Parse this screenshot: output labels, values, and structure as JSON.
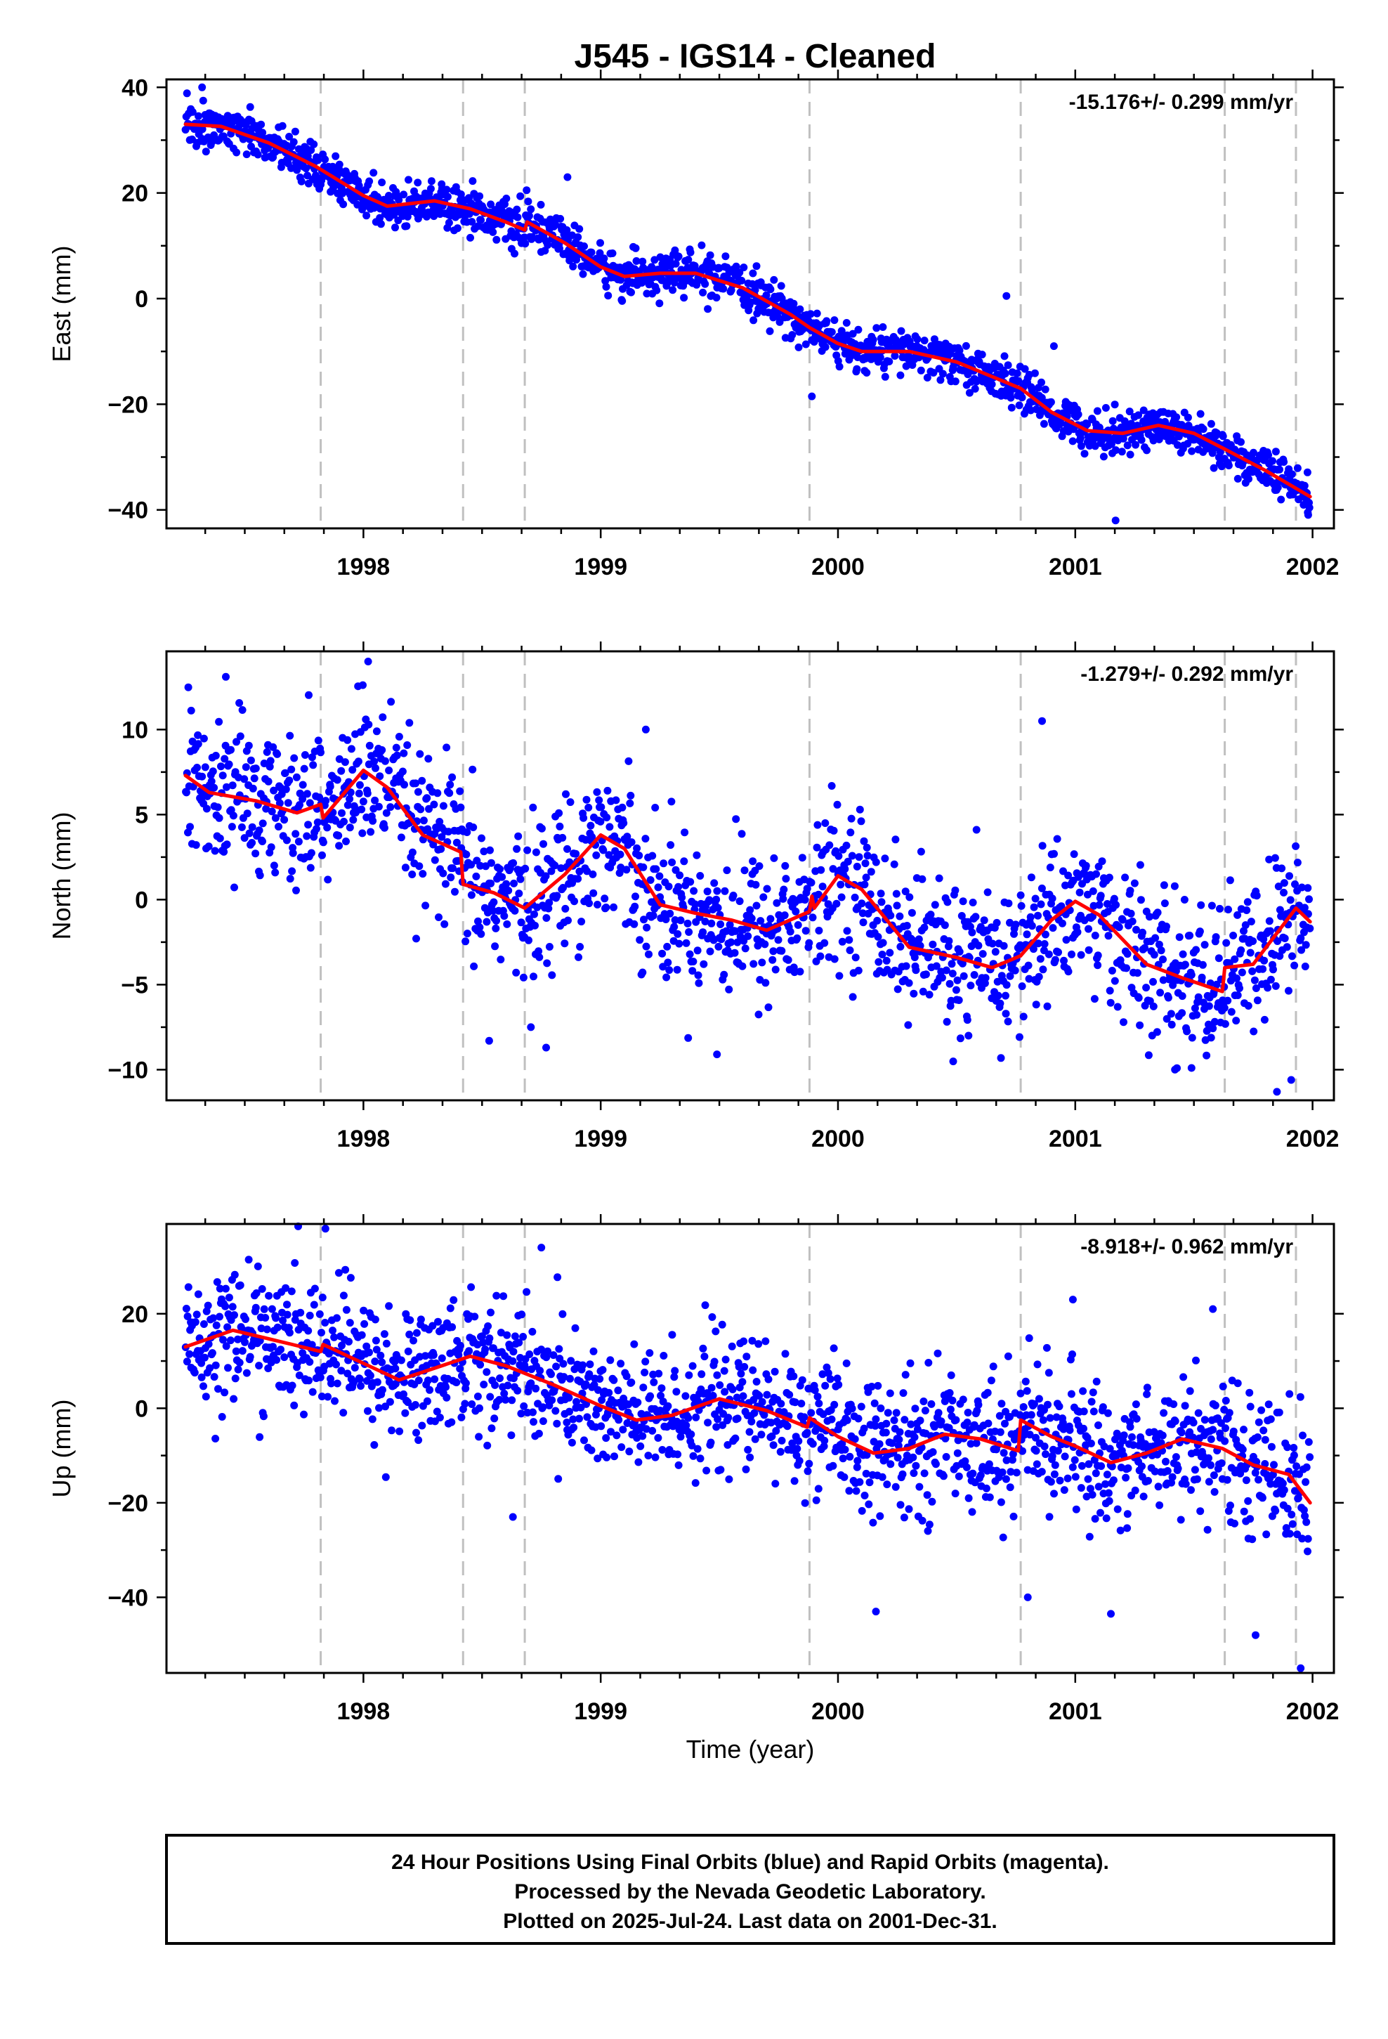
{
  "figure": {
    "title": "J545  - IGS14 - Cleaned",
    "xlabel": "Time (year)"
  },
  "footer": {
    "lines": [
      "24 Hour Positions Using Final Orbits (blue) and Rapid Orbits (magenta).",
      "Processed by the Nevada Geodetic Laboratory.",
      "Plotted on 2025-Jul-24. Last data on 2001-Dec-31."
    ]
  },
  "colors": {
    "points": "#0000ff",
    "model": "#ff0000",
    "event_lines": "#c0c0c0",
    "frame": "#000000",
    "background": "#ffffff"
  },
  "chart_data": [
    {
      "type": "scatter",
      "component": "east",
      "ylabel": "East (mm)",
      "rate_label": "-15.176+/- 0.299 mm/yr",
      "xlim": [
        1997.17,
        2002.09
      ],
      "ylim": [
        -43.5,
        41.5
      ],
      "x_ticks": [
        1998,
        1999,
        2000,
        2001,
        2002
      ],
      "x_tick_labels": [
        "1998",
        "1999",
        "2000",
        "2001",
        "2002"
      ],
      "y_ticks": [
        -40,
        -20,
        0,
        20,
        40
      ],
      "y_tick_labels": [
        "−40",
        "−20",
        "0",
        "20",
        "40"
      ],
      "event_lines": [
        1997.82,
        1998.42,
        1998.68,
        1999.88,
        2000.77,
        2001.63,
        2001.93
      ],
      "data_range": [
        1997.25,
        2001.99
      ],
      "model": [
        [
          1997.25,
          33.0
        ],
        [
          1997.4,
          32.6
        ],
        [
          1997.6,
          29.5
        ],
        [
          1997.8,
          25.0
        ],
        [
          1998.0,
          19.5
        ],
        [
          1998.1,
          17.5
        ],
        [
          1998.3,
          18.5
        ],
        [
          1998.45,
          17.0
        ],
        [
          1998.6,
          14.5
        ],
        [
          1998.68,
          13.0
        ],
        [
          1998.69,
          14.5
        ],
        [
          1998.85,
          10.5
        ],
        [
          1999.0,
          6.0
        ],
        [
          1999.1,
          4.2
        ],
        [
          1999.25,
          4.8
        ],
        [
          1999.4,
          4.8
        ],
        [
          1999.6,
          2.0
        ],
        [
          1999.8,
          -3.0
        ],
        [
          1999.88,
          -5.5
        ],
        [
          2000.0,
          -8.5
        ],
        [
          2000.1,
          -10.0
        ],
        [
          2000.3,
          -10.0
        ],
        [
          2000.5,
          -12.0
        ],
        [
          2000.77,
          -17.0
        ],
        [
          2000.9,
          -21.5
        ],
        [
          2001.05,
          -25.0
        ],
        [
          2001.2,
          -25.5
        ],
        [
          2001.35,
          -24.0
        ],
        [
          2001.5,
          -25.5
        ],
        [
          2001.63,
          -28.5
        ],
        [
          2001.8,
          -32.5
        ],
        [
          2001.99,
          -37.5
        ]
      ],
      "noise": 2.0,
      "outliers": [
        [
          1997.32,
          40.0
        ],
        [
          1998.86,
          23.0
        ],
        [
          1999.89,
          -18.5
        ],
        [
          2000.71,
          0.5
        ],
        [
          2000.91,
          -9.0
        ],
        [
          2001.17,
          -42.0
        ],
        [
          2001.98,
          -40.5
        ]
      ]
    },
    {
      "type": "scatter",
      "component": "north",
      "ylabel": "North (mm)",
      "rate_label": "-1.279+/- 0.292 mm/yr",
      "xlim": [
        1997.17,
        2002.09
      ],
      "ylim": [
        -11.8,
        14.6
      ],
      "x_ticks": [
        1998,
        1999,
        2000,
        2001,
        2002
      ],
      "x_tick_labels": [
        "1998",
        "1999",
        "2000",
        "2001",
        "2002"
      ],
      "y_ticks": [
        -10,
        -5,
        0,
        5,
        10
      ],
      "y_tick_labels": [
        "−10",
        "−5",
        "0",
        "5",
        "10"
      ],
      "event_lines": [
        1997.82,
        1998.42,
        1998.68,
        1999.88,
        2000.77,
        2001.63,
        2001.93
      ],
      "data_range": [
        1997.25,
        2001.99
      ],
      "model": [
        [
          1997.25,
          7.3
        ],
        [
          1997.35,
          6.3
        ],
        [
          1997.55,
          5.8
        ],
        [
          1997.72,
          5.1
        ],
        [
          1997.82,
          5.6
        ],
        [
          1997.83,
          4.8
        ],
        [
          1998.0,
          7.6
        ],
        [
          1998.1,
          6.6
        ],
        [
          1998.25,
          3.8
        ],
        [
          1998.41,
          2.8
        ],
        [
          1998.42,
          0.9
        ],
        [
          1998.55,
          0.4
        ],
        [
          1998.68,
          -0.5
        ],
        [
          1998.85,
          1.5
        ],
        [
          1999.0,
          3.8
        ],
        [
          1999.1,
          3.0
        ],
        [
          1999.25,
          -0.3
        ],
        [
          1999.4,
          -0.8
        ],
        [
          1999.55,
          -1.2
        ],
        [
          1999.7,
          -1.8
        ],
        [
          1999.88,
          -0.7
        ],
        [
          1999.89,
          0.2
        ],
        [
          1999.9,
          -0.5
        ],
        [
          2000.0,
          1.4
        ],
        [
          2000.1,
          0.6
        ],
        [
          2000.3,
          -2.8
        ],
        [
          2000.5,
          -3.4
        ],
        [
          2000.65,
          -4.0
        ],
        [
          2000.77,
          -3.3
        ],
        [
          2000.9,
          -1.2
        ],
        [
          2001.0,
          -0.1
        ],
        [
          2001.1,
          -0.9
        ],
        [
          2001.3,
          -3.8
        ],
        [
          2001.45,
          -4.6
        ],
        [
          2001.62,
          -5.4
        ],
        [
          2001.63,
          -4.0
        ],
        [
          2001.75,
          -3.8
        ],
        [
          2001.93,
          -0.5
        ],
        [
          2001.99,
          -1.3
        ]
      ],
      "noise": 2.2,
      "outliers": [
        [
          1997.42,
          13.1
        ],
        [
          1998.02,
          14.0
        ],
        [
          1998.53,
          -8.3
        ],
        [
          1998.77,
          -8.7
        ],
        [
          1999.19,
          10.0
        ],
        [
          1999.49,
          -9.1
        ],
        [
          2000.55,
          -8.0
        ],
        [
          2000.86,
          10.5
        ],
        [
          2001.42,
          -10.0
        ],
        [
          2001.85,
          -11.3
        ],
        [
          2001.91,
          -10.6
        ],
        [
          2001.49,
          -9.9
        ]
      ]
    },
    {
      "type": "scatter",
      "component": "up",
      "ylabel": "Up (mm)",
      "rate_label": "-8.918+/- 0.962 mm/yr",
      "xlim": [
        1997.17,
        2002.09
      ],
      "ylim": [
        -56.0,
        39.0
      ],
      "x_ticks": [
        1998,
        1999,
        2000,
        2001,
        2002
      ],
      "x_tick_labels": [
        "1998",
        "1999",
        "2000",
        "2001",
        "2002"
      ],
      "y_ticks": [
        -40,
        -20,
        0,
        20
      ],
      "y_tick_labels": [
        "−40",
        "−20",
        "0",
        "20"
      ],
      "event_lines": [
        1997.82,
        1998.42,
        1998.68,
        1999.88,
        2000.77,
        2001.63,
        2001.93
      ],
      "data_range": [
        1997.25,
        2001.99
      ],
      "model": [
        [
          1997.25,
          13.0
        ],
        [
          1997.45,
          16.5
        ],
        [
          1997.7,
          13.5
        ],
        [
          1997.82,
          12.0
        ],
        [
          1997.83,
          13.5
        ],
        [
          1998.0,
          9.5
        ],
        [
          1998.15,
          6.0
        ],
        [
          1998.3,
          8.5
        ],
        [
          1998.45,
          11.0
        ],
        [
          1998.6,
          9.0
        ],
        [
          1998.8,
          5.0
        ],
        [
          1999.0,
          0.5
        ],
        [
          1999.15,
          -2.5
        ],
        [
          1999.3,
          -1.5
        ],
        [
          1999.5,
          2.0
        ],
        [
          1999.7,
          -0.5
        ],
        [
          1999.87,
          -4.0
        ],
        [
          1999.88,
          -2.0
        ],
        [
          2000.0,
          -6.0
        ],
        [
          2000.15,
          -9.5
        ],
        [
          2000.3,
          -8.5
        ],
        [
          2000.45,
          -5.5
        ],
        [
          2000.6,
          -6.5
        ],
        [
          2000.76,
          -9.0
        ],
        [
          2000.77,
          -2.5
        ],
        [
          2000.9,
          -6.0
        ],
        [
          2001.0,
          -8.0
        ],
        [
          2001.15,
          -11.5
        ],
        [
          2001.3,
          -9.5
        ],
        [
          2001.45,
          -6.5
        ],
        [
          2001.62,
          -8.5
        ],
        [
          2001.75,
          -12.0
        ],
        [
          2001.9,
          -14.0
        ],
        [
          2001.99,
          -20.0
        ]
      ],
      "noise": 7.0,
      "outliers": [
        [
          1997.84,
          38.0
        ],
        [
          1998.75,
          34.0
        ],
        [
          1998.63,
          -23.0
        ],
        [
          2000.16,
          -43.0
        ],
        [
          2000.8,
          -40.0
        ],
        [
          2000.99,
          23.0
        ],
        [
          2001.15,
          -43.5
        ],
        [
          2001.76,
          -48.0
        ],
        [
          2001.95,
          -55.0
        ],
        [
          2001.58,
          21.0
        ]
      ]
    }
  ]
}
